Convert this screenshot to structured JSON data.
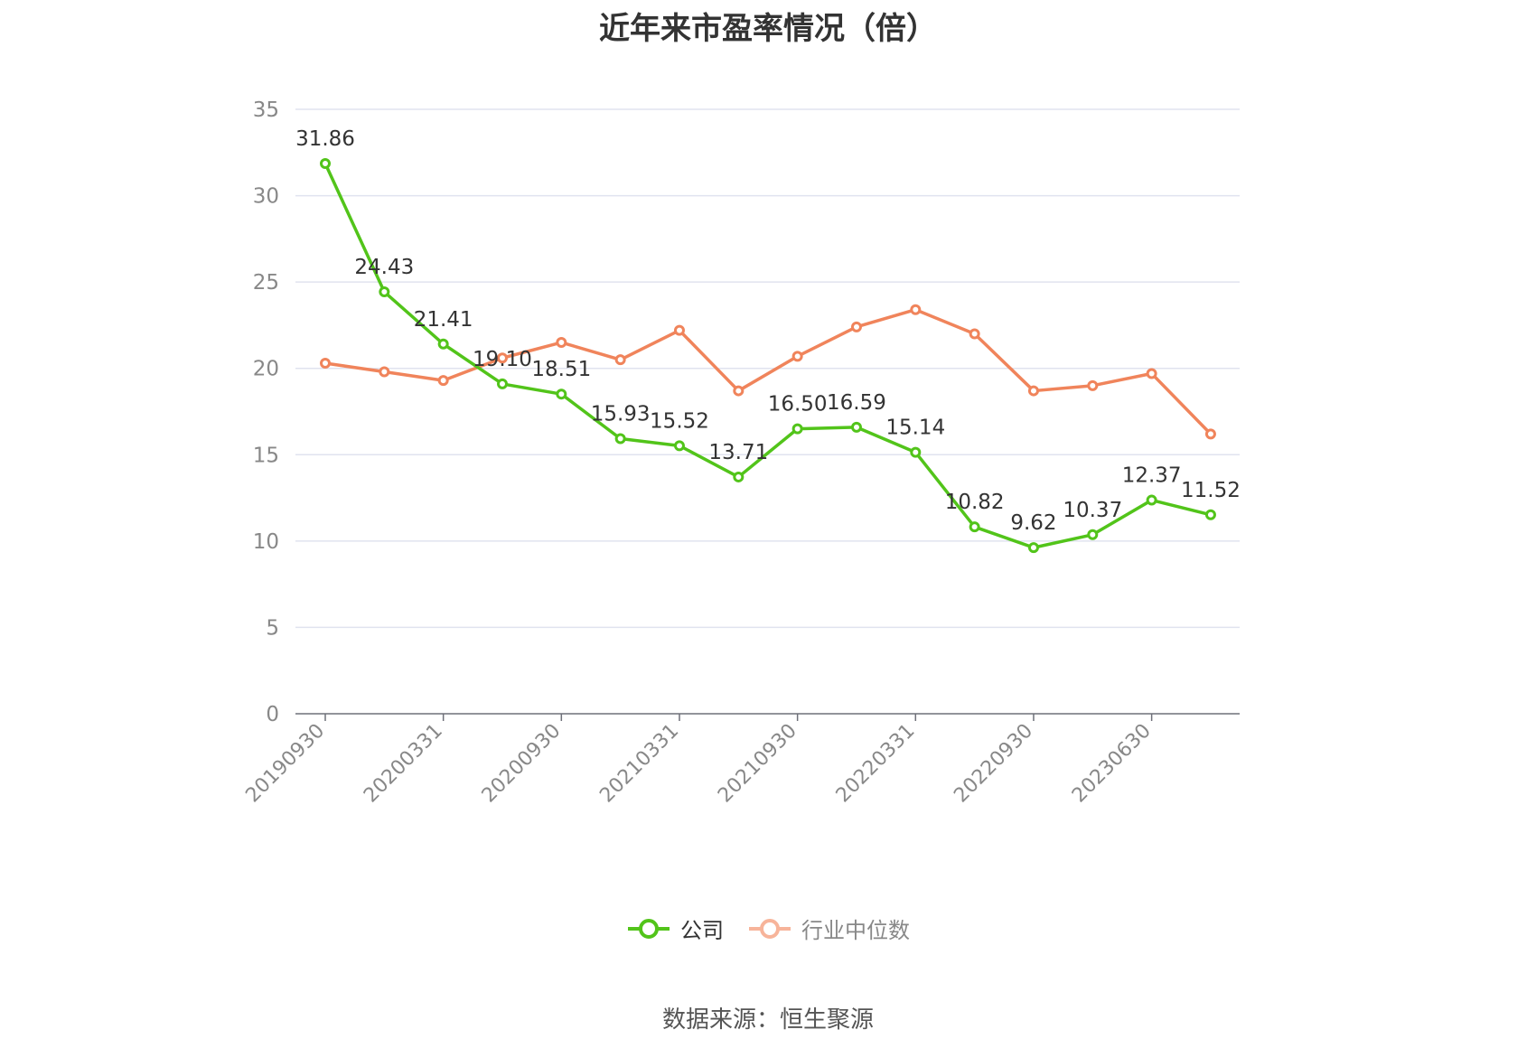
{
  "source": "数据来源：恒生聚源",
  "chart_data": {
    "type": "line",
    "title": "近年来市盈率情况（倍）",
    "xlabel": "",
    "ylabel": "",
    "ylim": [
      0,
      35
    ],
    "yticks": [
      0,
      5,
      10,
      15,
      20,
      25,
      30,
      35
    ],
    "grid": true,
    "legend_position": "bottom",
    "categories": [
      "20190930",
      "",
      "20200331",
      "",
      "20200930",
      "",
      "20210331",
      "",
      "20210930",
      "",
      "20220331",
      "",
      "20220930",
      "",
      "20230630",
      ""
    ],
    "series": [
      {
        "name": "公司",
        "color": "#52c41a",
        "values": [
          31.86,
          24.43,
          21.41,
          19.1,
          18.51,
          15.93,
          15.52,
          13.71,
          16.5,
          16.59,
          15.14,
          10.82,
          9.62,
          10.37,
          12.37,
          11.52
        ],
        "labels": [
          "31.86",
          "24.43",
          "21.41",
          "19.10",
          "18.51",
          "15.93",
          "15.52",
          "13.71",
          "16.50",
          "16.59",
          "15.14",
          "10.82",
          "9.62",
          "10.37",
          "12.37",
          "11.52"
        ],
        "show_labels": true
      },
      {
        "name": "行业中位数",
        "color": "#f0845b",
        "values": [
          20.3,
          19.8,
          19.3,
          20.6,
          21.5,
          20.5,
          22.2,
          18.7,
          20.7,
          22.4,
          23.4,
          22.0,
          18.7,
          19.0,
          19.7,
          16.2
        ],
        "show_labels": false
      }
    ]
  }
}
